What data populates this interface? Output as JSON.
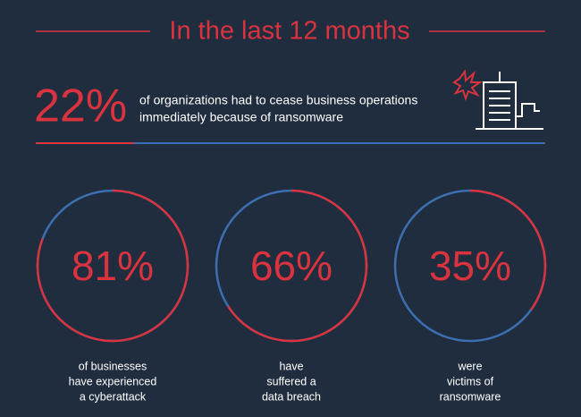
{
  "title": "In the last 12 months",
  "headline": {
    "value": 22,
    "value_label": "22%",
    "lines": [
      "of organizations had to cease business operations",
      "immediately because of ransomware"
    ]
  },
  "stats": [
    {
      "value": 81,
      "value_label": "81%",
      "caption": [
        "of businesses",
        "have experienced",
        "a cyberattack"
      ]
    },
    {
      "value": 66,
      "value_label": "66%",
      "caption": [
        "have",
        "suffered a",
        "data breach"
      ]
    },
    {
      "value": 35,
      "value_label": "35%",
      "caption": [
        "were",
        "victims of",
        "ransomware"
      ]
    }
  ]
}
